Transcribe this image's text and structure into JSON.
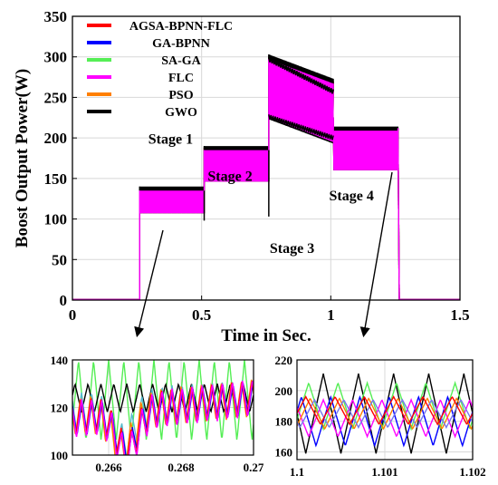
{
  "chart_data": [
    {
      "type": "line",
      "xlabel": "Time in Sec.",
      "ylabel": "Boost Output Power(W)",
      "xlim": [
        0,
        1.5
      ],
      "ylim": [
        0,
        350
      ],
      "xticks": [
        0,
        0.5,
        1,
        1.5
      ],
      "xtick_labels": [
        "0",
        "0.5",
        "1",
        "1.5"
      ],
      "yticks": [
        0,
        50,
        100,
        150,
        200,
        250,
        300,
        350
      ],
      "ytick_labels": [
        "0",
        "50",
        "100",
        "150",
        "200",
        "250",
        "300",
        "350"
      ],
      "grid": true,
      "legend_position": "top-center",
      "stages": [
        {
          "label": "Stage 1",
          "t_start": 0.26,
          "t_end": 0.51,
          "mean_power": 132,
          "band_low": 107,
          "band_high": 138
        },
        {
          "label": "Stage 2",
          "t_start": 0.51,
          "t_end": 0.76,
          "mean_power": 183,
          "band_low": 146,
          "band_high": 188
        },
        {
          "label": "Stage 3",
          "t_start": 0.76,
          "t_end": 1.01,
          "mean_power": 285,
          "band_low": 225,
          "band_high": 300,
          "end_power": 255
        },
        {
          "label": "Stage 4",
          "t_start": 1.01,
          "t_end": 1.26,
          "mean_power": 198,
          "band_low": 160,
          "band_high": 212
        }
      ],
      "series": [
        {
          "name": "AGSA-BPNN-FLC",
          "color": "#ff0000"
        },
        {
          "name": "GA-BPNN",
          "color": "#0000ff"
        },
        {
          "name": "SA-GA",
          "color": "#55ee55"
        },
        {
          "name": "FLC",
          "color": "#ff00ff"
        },
        {
          "name": "PSO",
          "color": "#ff7f00"
        },
        {
          "name": "GWO",
          "color": "#000000"
        }
      ]
    },
    {
      "type": "line",
      "xlim": [
        0.265,
        0.27
      ],
      "ylim": [
        100,
        140
      ],
      "xticks": [
        0.266,
        0.268,
        0.27
      ],
      "xtick_labels": [
        "0.266",
        "0.268",
        "0.27"
      ],
      "yticks": [
        100,
        120,
        140
      ],
      "ytick_labels": [
        "100",
        "120",
        "140"
      ],
      "grid": true
    },
    {
      "type": "line",
      "xlim": [
        1.1,
        1.102
      ],
      "ylim": [
        155,
        220
      ],
      "xticks": [
        1.1,
        1.101,
        1.102
      ],
      "xtick_labels": [
        "1.1",
        "1.101",
        "1.102"
      ],
      "yticks": [
        160,
        180,
        200,
        220
      ],
      "ytick_labels": [
        "160",
        "180",
        "200",
        "220"
      ],
      "grid": true
    }
  ]
}
